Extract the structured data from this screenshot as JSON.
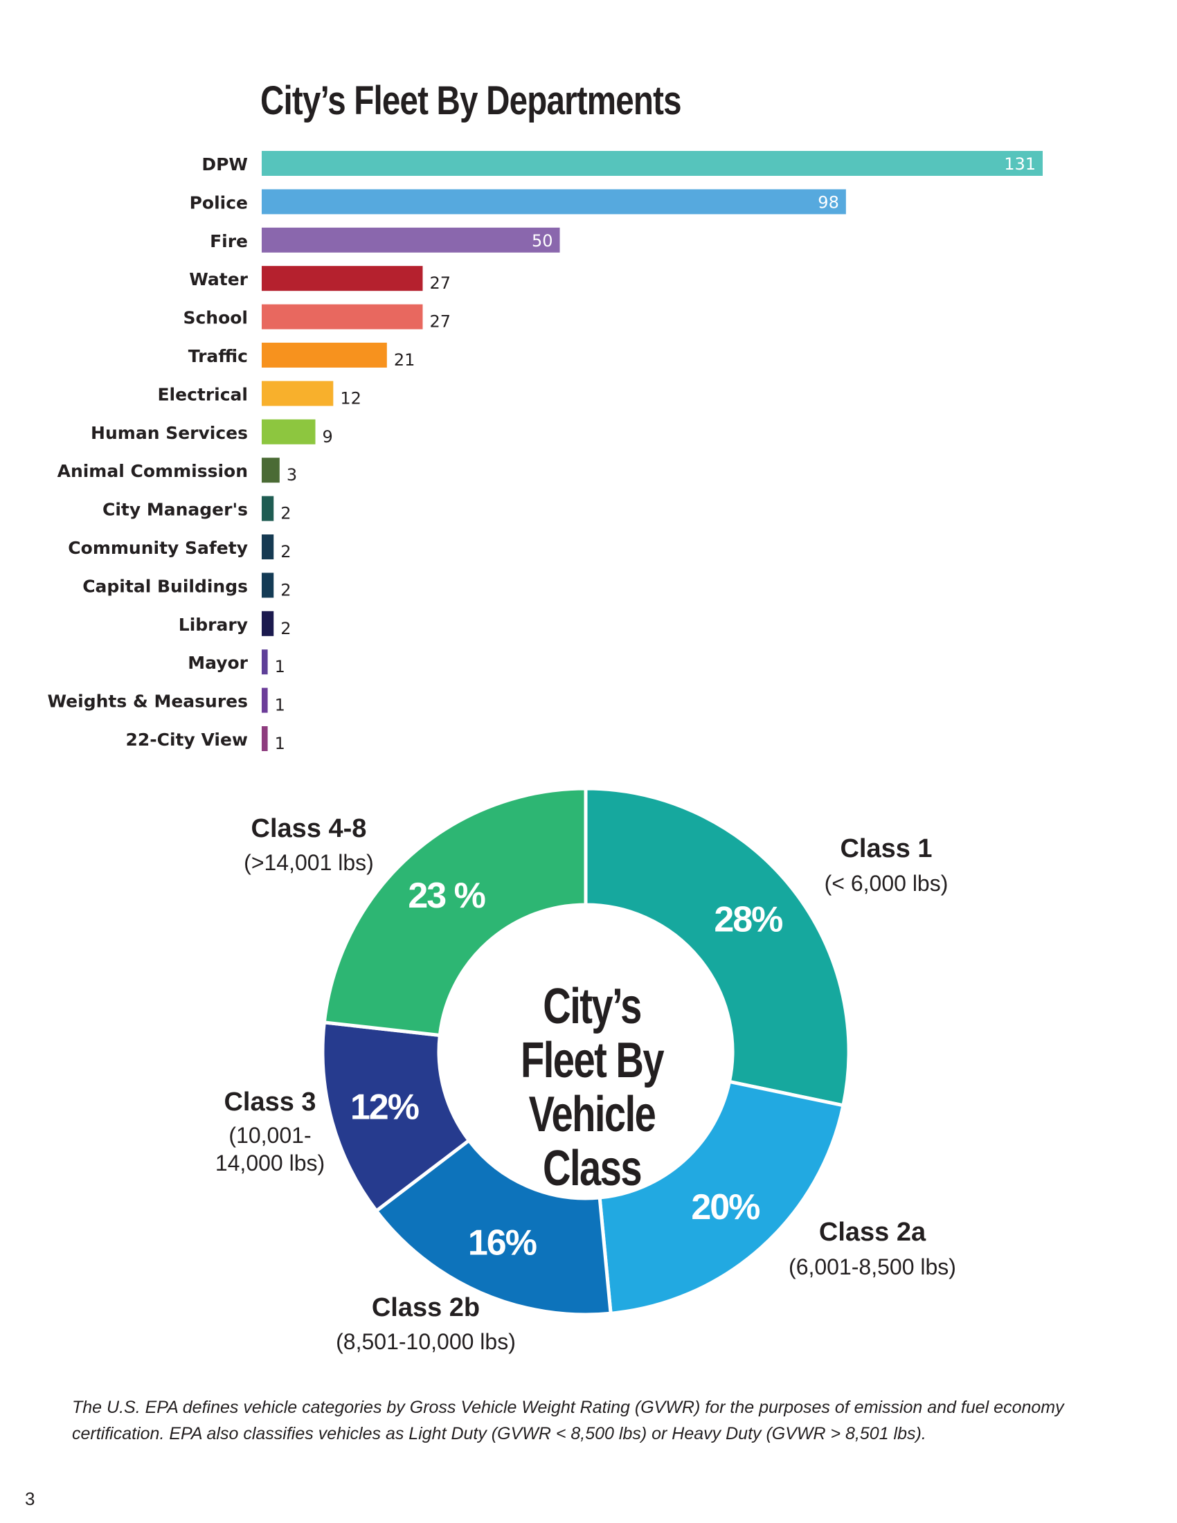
{
  "bar_chart_title": "City’s Fleet By Departments",
  "donut_center_title": "City’s Fleet By Vehicle Class",
  "footnote": "The U.S. EPA defines vehicle categories by Gross Vehicle Weight Rating (GVWR) for the purposes of emission and fuel economy certification. EPA also classifies vehicles as Light Duty (GVWR < 8,500 lbs) or Heavy Duty (GVWR > 8,501 lbs).",
  "page_number": "3",
  "chart_data": [
    {
      "type": "bar",
      "orientation": "horizontal",
      "title": "City’s Fleet By Departments",
      "categories": [
        "DPW",
        "Police",
        "Fire",
        "Water",
        "School",
        "Traffic",
        "Electrical",
        "Human Services",
        "Animal Commission",
        "City Manager's",
        "Community Safety",
        "Capital Buildings",
        "Library",
        "Mayor",
        "Weights & Measures",
        "22-City View"
      ],
      "values": [
        131,
        98,
        50,
        27,
        27,
        21,
        12,
        9,
        3,
        2,
        2,
        2,
        2,
        1,
        1,
        1
      ],
      "colors": [
        "#56c4bc",
        "#56a9de",
        "#8a67ad",
        "#b5212e",
        "#e8685f",
        "#f7921e",
        "#f8b02c",
        "#8dc63f",
        "#4b6b35",
        "#1f5c52",
        "#163a52",
        "#143b55",
        "#1b1a4e",
        "#5e3f98",
        "#6c3d99",
        "#8e3c7e"
      ],
      "grid": false
    },
    {
      "type": "pie",
      "variant": "donut",
      "title": "City’s Fleet By Vehicle Class",
      "slices": [
        {
          "name": "Class 1",
          "weight": "(< 6,000 lbs)",
          "value": 28,
          "label": "28%",
          "color": "#16a89e"
        },
        {
          "name": "Class 2a",
          "weight": "(6,001-8,500 lbs)",
          "value": 20,
          "label": "20%",
          "color": "#22a9e1"
        },
        {
          "name": "Class 2b",
          "weight": "(8,501-10,000 lbs)",
          "value": 16,
          "label": "16%",
          "color": "#0d73bb"
        },
        {
          "name": "Class 3",
          "weight": "(10,001-14,000 lbs)",
          "value": 12,
          "label": "12%",
          "color": "#263b8e"
        },
        {
          "name": "Class 4-8",
          "weight": "(>14,001 lbs)",
          "value": 23,
          "label": "23 %",
          "color": "#2db673"
        }
      ]
    }
  ]
}
